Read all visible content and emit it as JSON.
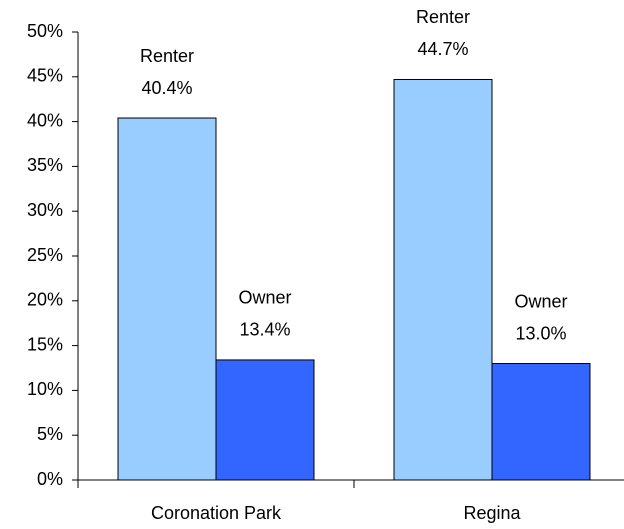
{
  "chart_data": {
    "type": "bar",
    "categories": [
      "Coronation Park",
      "Regina"
    ],
    "series": [
      {
        "name": "Renter",
        "color": "#99ccff",
        "values": [
          40.4,
          44.7
        ],
        "value_labels": [
          "40.4%",
          "44.7%"
        ]
      },
      {
        "name": "Owner",
        "color": "#3366ff",
        "values": [
          13.4,
          13.0
        ],
        "value_labels": [
          "13.4%",
          "13.0%"
        ]
      }
    ],
    "ylim": [
      0,
      50
    ],
    "yticks": [
      {
        "value": 0,
        "label": "0%"
      },
      {
        "value": 5,
        "label": "5%"
      },
      {
        "value": 10,
        "label": "10%"
      },
      {
        "value": 15,
        "label": "15%"
      },
      {
        "value": 20,
        "label": "20%"
      },
      {
        "value": 25,
        "label": "25%"
      },
      {
        "value": 30,
        "label": "30%"
      },
      {
        "value": 35,
        "label": "35%"
      },
      {
        "value": 40,
        "label": "40%"
      },
      {
        "value": 45,
        "label": "45%"
      },
      {
        "value": 50,
        "label": "50%"
      }
    ]
  }
}
